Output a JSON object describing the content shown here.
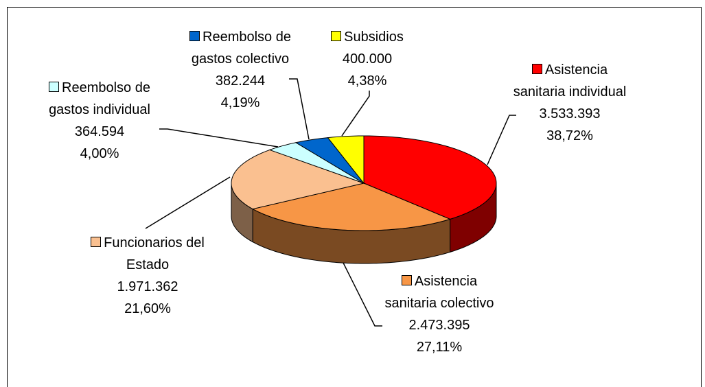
{
  "chart_data": {
    "type": "pie",
    "style": "3d",
    "categories": [
      "Asistencia sanitaria individual",
      "Asistencia sanitaria colectivo",
      "Funcionarios del Estado",
      "Reembolso de gastos individual",
      "Reembolso de gastos colectivo",
      "Subsidios"
    ],
    "values": [
      3533393,
      2473395,
      1971362,
      364594,
      382244,
      400000
    ],
    "value_labels": [
      "3.533.393",
      "2.473.395",
      "1.971.362",
      "364.594",
      "382.244",
      "400.000"
    ],
    "percents": [
      38.72,
      27.11,
      21.6,
      4.0,
      4.19,
      4.38
    ],
    "percent_labels": [
      "38,72%",
      "27,11%",
      "21,60%",
      "4,00%",
      "4,19%",
      "4,38%"
    ],
    "colors": [
      "#ff0000",
      "#f79646",
      "#fac090",
      "#ccffff",
      "#0066cc",
      "#ffff00"
    ],
    "side_colors": [
      "#7f0000",
      "#7a4a22",
      "#7d6048",
      "#668080",
      "#003366",
      "#808000"
    ]
  }
}
